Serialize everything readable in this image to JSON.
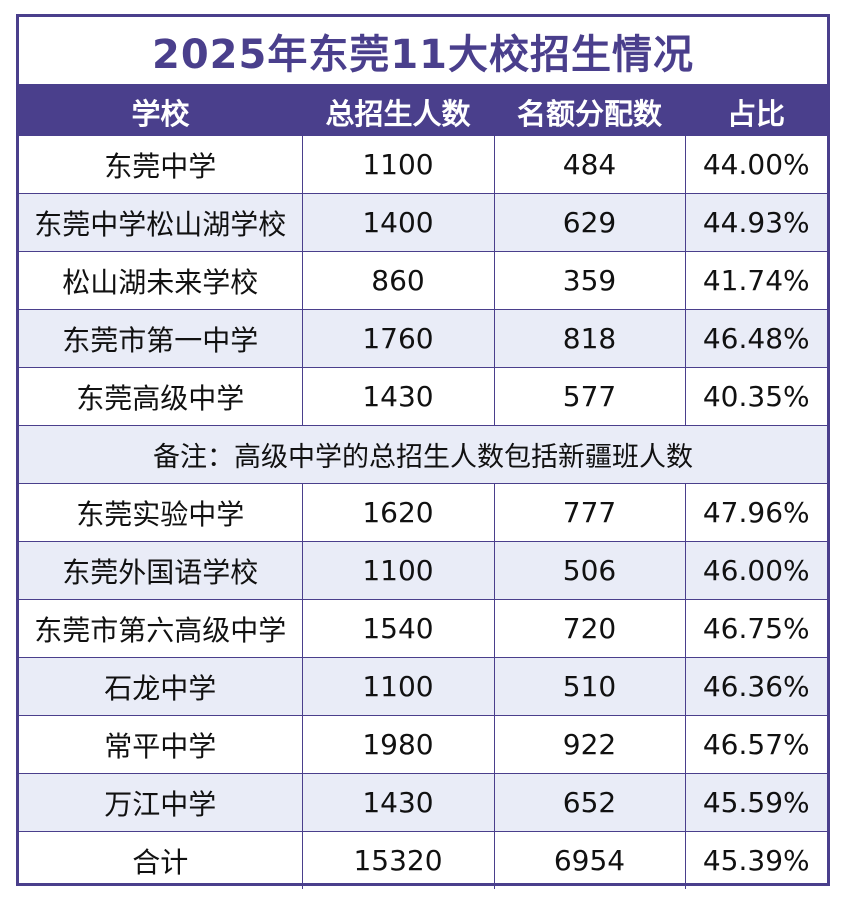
{
  "title": "2025年东莞11大校招生情况",
  "headers": [
    "学校",
    "总招生人数",
    "名额分配数",
    "占比"
  ],
  "rows_a": [
    {
      "school": "东莞中学",
      "total": "1100",
      "quota": "484",
      "ratio": "44.00%"
    },
    {
      "school": "东莞中学松山湖学校",
      "total": "1400",
      "quota": "629",
      "ratio": "44.93%"
    },
    {
      "school": "松山湖未来学校",
      "total": "860",
      "quota": "359",
      "ratio": "41.74%"
    },
    {
      "school": "东莞市第一中学",
      "total": "1760",
      "quota": "818",
      "ratio": "46.48%"
    },
    {
      "school": "东莞高级中学",
      "total": "1430",
      "quota": "577",
      "ratio": "40.35%"
    }
  ],
  "note": "备注：高级中学的总招生人数包括新疆班人数",
  "rows_b": [
    {
      "school": "东莞实验中学",
      "total": "1620",
      "quota": "777",
      "ratio": "47.96%"
    },
    {
      "school": "东莞外国语学校",
      "total": "1100",
      "quota": "506",
      "ratio": "46.00%"
    },
    {
      "school": "东莞市第六高级中学",
      "total": "1540",
      "quota": "720",
      "ratio": "46.75%"
    },
    {
      "school": "石龙中学",
      "total": "1100",
      "quota": "510",
      "ratio": "46.36%"
    },
    {
      "school": "常平中学",
      "total": "1980",
      "quota": "922",
      "ratio": "46.57%"
    },
    {
      "school": "万江中学",
      "total": "1430",
      "quota": "652",
      "ratio": "45.59%"
    }
  ],
  "total_row": {
    "school": "合计",
    "total": "15320",
    "quota": "6954",
    "ratio": "45.39%"
  },
  "colors": {
    "accent": "#4a3f8c",
    "shade": "#e9ecf7"
  }
}
